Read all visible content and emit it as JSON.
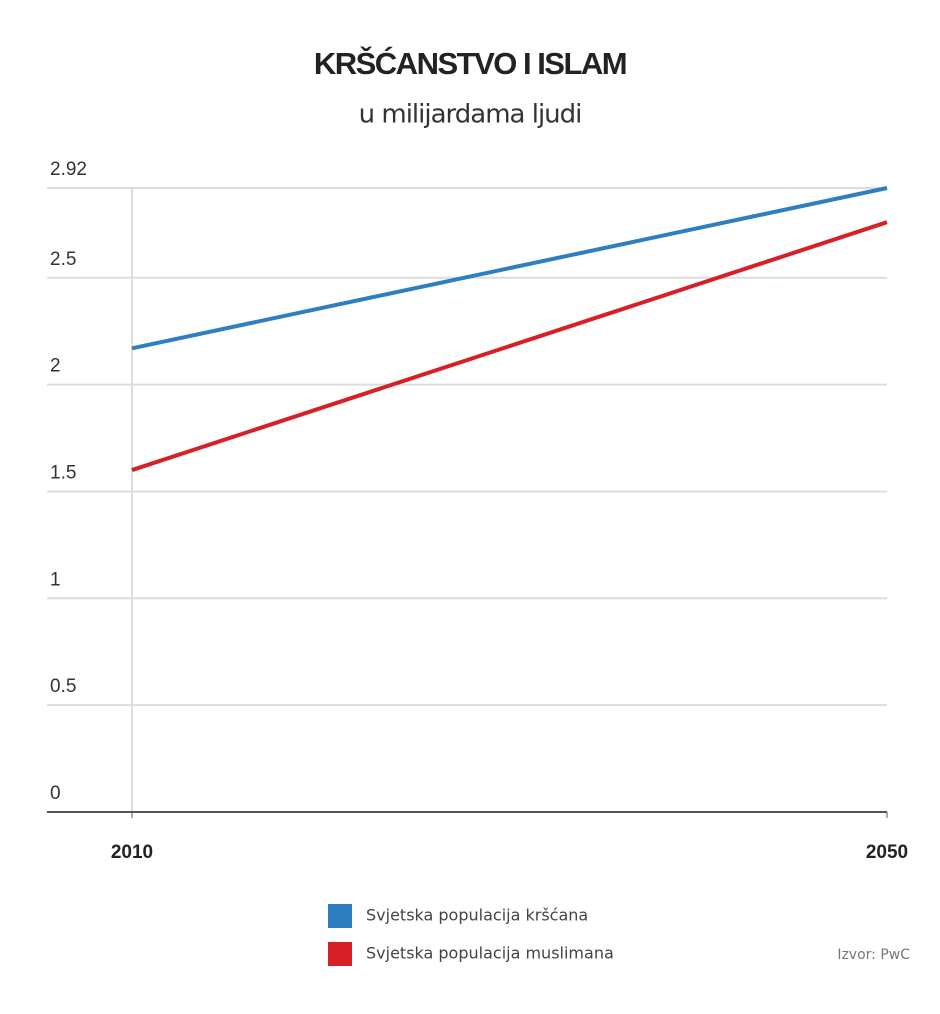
{
  "chart_data": {
    "type": "line",
    "title": "KRŠĆANSTVO I ISLAM",
    "subtitle": "u milijardama ljudi",
    "x": [
      2010,
      2050
    ],
    "xlim": [
      2010,
      2050
    ],
    "xticks": [
      2010,
      2050
    ],
    "series": [
      {
        "name": "Svjetska populacija kršćana",
        "color": "#2f7ebf",
        "values": [
          2.17,
          2.92
        ]
      },
      {
        "name": "Svjetska populacija muslimana",
        "color": "#d71f26",
        "values": [
          1.6,
          2.76
        ]
      }
    ],
    "ylim": [
      0,
      2.92
    ],
    "yticks": [
      0,
      0.5,
      1,
      1.5,
      2,
      2.5,
      2.92
    ],
    "grid": true,
    "source": "Izvor: PwC"
  }
}
